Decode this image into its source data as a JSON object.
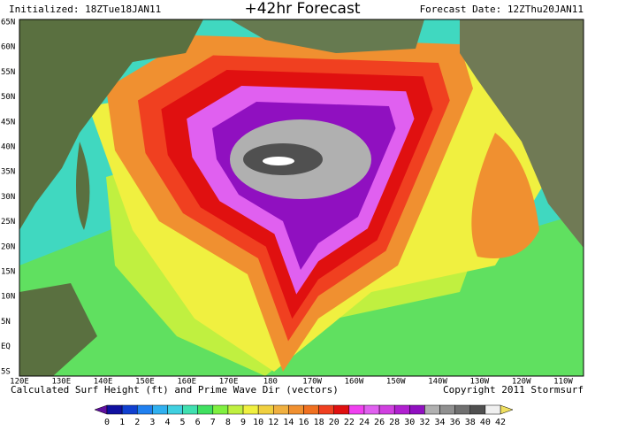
{
  "header": {
    "initialized": "Initialized: 18ZTue18JAN11",
    "title": "+42hr Forecast",
    "forecast_date": "Forecast Date: 12ZThu20JAN11"
  },
  "map": {
    "lat_labels": [
      "65N",
      "60N",
      "55N",
      "50N",
      "45N",
      "40N",
      "35N",
      "30N",
      "25N",
      "20N",
      "15N",
      "10N",
      "5N",
      "EQ",
      "5S"
    ],
    "lon_labels": [
      "120E",
      "130E",
      "140E",
      "150E",
      "160E",
      "170E",
      "180",
      "170W",
      "160W",
      "150W",
      "140W",
      "130W",
      "120W",
      "110W"
    ]
  },
  "footer": {
    "caption": "Calculated Surf Height (ft) and Prime Wave Dir (vectors)",
    "copyright": "Copyright 2011 Stormsurf"
  },
  "legend": {
    "labels": [
      0,
      1,
      2,
      3,
      4,
      5,
      6,
      7,
      8,
      9,
      10,
      12,
      14,
      16,
      18,
      20,
      22,
      24,
      26,
      28,
      30,
      32,
      34,
      36,
      38,
      40,
      42
    ],
    "colors": [
      "#1010a0",
      "#1040d0",
      "#2080f0",
      "#30b0f0",
      "#40d0e0",
      "#40e0b0",
      "#40e060",
      "#80f040",
      "#c0f040",
      "#f0f040",
      "#f0d040",
      "#f0b040",
      "#f09030",
      "#f07020",
      "#f04020",
      "#e01010",
      "#f040f0",
      "#e060f0",
      "#d040e0",
      "#b020d0",
      "#9010c0",
      "#b0b0b0",
      "#909090",
      "#707070",
      "#505050",
      "#f0f0f0"
    ],
    "low_color": "#6010a0",
    "high_color": "#f0e060"
  }
}
